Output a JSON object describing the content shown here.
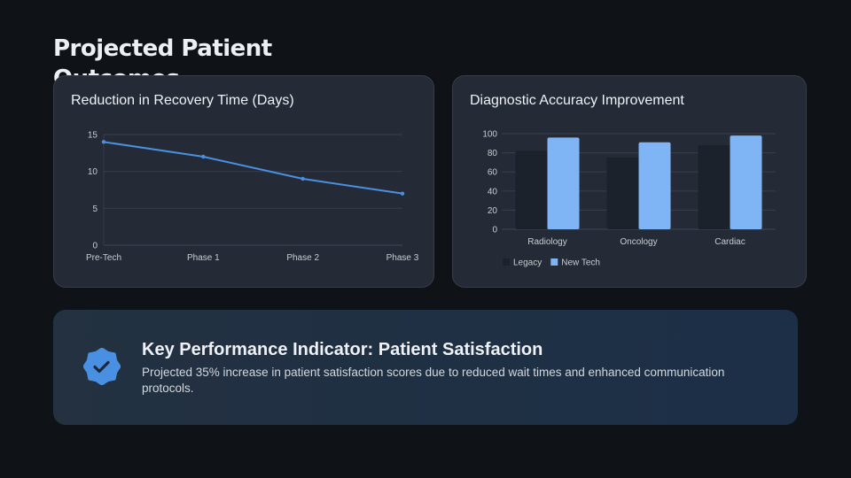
{
  "title": "Projected Patient Outcomes",
  "chart_data": [
    {
      "type": "line",
      "title": "Reduction in Recovery Time (Days)",
      "categories": [
        "Pre-Tech",
        "Phase 1",
        "Phase 2",
        "Phase 3"
      ],
      "values": [
        14,
        12,
        9,
        7
      ],
      "ylim": [
        0,
        15
      ],
      "yticks": [
        0,
        5,
        10,
        15
      ],
      "grid": true,
      "color": "#4a90e2"
    },
    {
      "type": "bar",
      "title": "Diagnostic Accuracy Improvement",
      "categories": [
        "Radiology",
        "Oncology",
        "Cardiac"
      ],
      "series": [
        {
          "name": "Legacy",
          "values": [
            82,
            75,
            88
          ],
          "color": "#1c222b"
        },
        {
          "name": "New Tech",
          "values": [
            96,
            91,
            98
          ],
          "color": "#7fb5f5"
        }
      ],
      "ylim": [
        0,
        100
      ],
      "yticks": [
        0,
        20,
        40,
        60,
        80,
        100
      ],
      "grid": true,
      "legend": "bottom-left"
    }
  ],
  "kpi": {
    "title": "Key Performance Indicator: Patient Satisfaction",
    "text": "Projected 35% increase in patient satisfaction scores due to reduced wait times and enhanced communication protocols.",
    "icon": "verified-badge-icon",
    "color": "#4a90e2"
  }
}
